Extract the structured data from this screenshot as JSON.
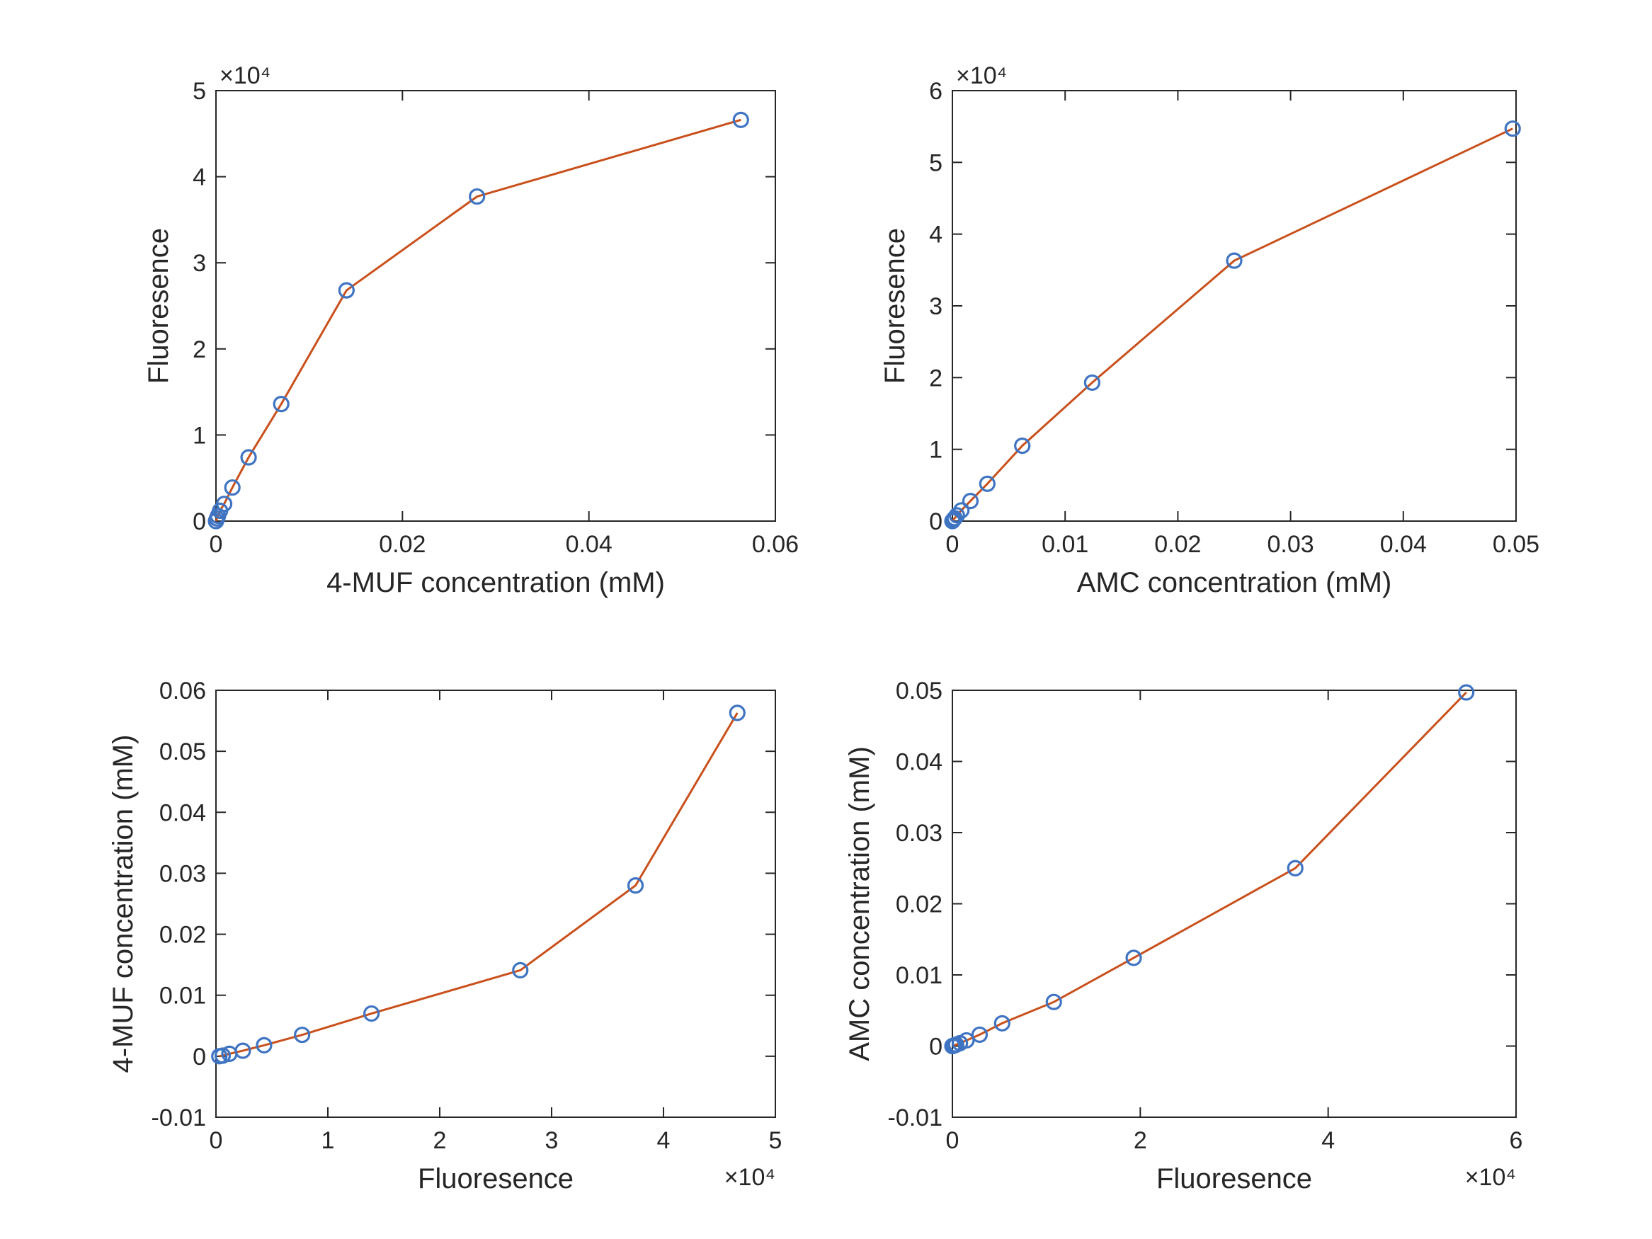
{
  "colors": {
    "line": "#C9501C",
    "marker": "#3F74C2",
    "axes": "#262626"
  },
  "chart_data": [
    {
      "type": "line",
      "marker": "circle",
      "xlabel": "4-MUF concentration (mM)",
      "ylabel": "Fluoresence",
      "xlim": [
        0,
        0.06
      ],
      "ylim": [
        0,
        50000
      ],
      "xticks": [
        0,
        0.02,
        0.04,
        0.06
      ],
      "xtick_labels": [
        "0",
        "0.02",
        "0.04",
        "0.06"
      ],
      "yticks": [
        0,
        10000,
        20000,
        30000,
        40000,
        50000
      ],
      "ytick_labels": [
        "0",
        "1",
        "2",
        "3",
        "4",
        "5"
      ],
      "y_exponent_label": "×10⁴",
      "x_exponent_label": "",
      "x": [
        0,
        0.00011,
        0.00022,
        0.00044,
        0.00088,
        0.00176,
        0.0035,
        0.007,
        0.014,
        0.028,
        0.0563
      ],
      "y": [
        0,
        300,
        600,
        1200,
        2000,
        3900,
        7400,
        13600,
        26800,
        37700,
        46600
      ]
    },
    {
      "type": "line",
      "marker": "circle",
      "xlabel": "AMC concentration (mM)",
      "ylabel": "Fluoresence",
      "xlim": [
        0,
        0.05
      ],
      "ylim": [
        0,
        60000
      ],
      "xticks": [
        0,
        0.01,
        0.02,
        0.03,
        0.04,
        0.05
      ],
      "xtick_labels": [
        "0",
        "0.01",
        "0.02",
        "0.03",
        "0.04",
        "0.05"
      ],
      "yticks": [
        0,
        10000,
        20000,
        30000,
        40000,
        50000,
        60000
      ],
      "ytick_labels": [
        "0",
        "1",
        "2",
        "3",
        "4",
        "5",
        "6"
      ],
      "y_exponent_label": "×10⁴",
      "x_exponent_label": "",
      "x": [
        0,
        0.0001,
        0.0002,
        0.0004,
        0.0008,
        0.0016,
        0.0031,
        0.0062,
        0.0124,
        0.025,
        0.0497
      ],
      "y": [
        0,
        200,
        400,
        800,
        1500,
        2800,
        5200,
        10500,
        19300,
        36300,
        54700
      ]
    },
    {
      "type": "line",
      "marker": "circle",
      "xlabel": "Fluoresence",
      "ylabel": "4-MUF concentration (mM)",
      "xlim": [
        0,
        50000
      ],
      "ylim": [
        -0.01,
        0.06
      ],
      "xticks": [
        0,
        10000,
        20000,
        30000,
        40000,
        50000
      ],
      "xtick_labels": [
        "0",
        "1",
        "2",
        "3",
        "4",
        "5"
      ],
      "yticks": [
        -0.01,
        0,
        0.01,
        0.02,
        0.03,
        0.04,
        0.05,
        0.06
      ],
      "ytick_labels": [
        "-0.01",
        "0",
        "0.01",
        "0.02",
        "0.03",
        "0.04",
        "0.05",
        "0.06"
      ],
      "y_exponent_label": "",
      "x_exponent_label": "×10⁴",
      "x": [
        300,
        600,
        1200,
        2400,
        4300,
        7700,
        13900,
        27200,
        37500,
        46600
      ],
      "y": [
        0,
        0.0001,
        0.0004,
        0.0009,
        0.0018,
        0.0035,
        0.007,
        0.0141,
        0.028,
        0.0563
      ]
    },
    {
      "type": "line",
      "marker": "circle",
      "xlabel": "Fluoresence",
      "ylabel": "AMC concentration (mM)",
      "xlim": [
        0,
        60000
      ],
      "ylim": [
        -0.01,
        0.05
      ],
      "xticks": [
        0,
        20000,
        40000,
        60000
      ],
      "xtick_labels": [
        "0",
        "2",
        "4",
        "6"
      ],
      "yticks": [
        -0.01,
        0,
        0.01,
        0.02,
        0.03,
        0.04,
        0.05
      ],
      "ytick_labels": [
        "-0.01",
        "0",
        "0.01",
        "0.02",
        "0.03",
        "0.04",
        "0.05"
      ],
      "y_exponent_label": "",
      "x_exponent_label": "×10⁴",
      "x": [
        0,
        200,
        400,
        800,
        1500,
        2900,
        5300,
        10800,
        19300,
        36500,
        54700
      ],
      "y": [
        0,
        0.0001,
        0.0002,
        0.0004,
        0.0008,
        0.0016,
        0.0032,
        0.0062,
        0.0124,
        0.025,
        0.0497
      ]
    }
  ]
}
